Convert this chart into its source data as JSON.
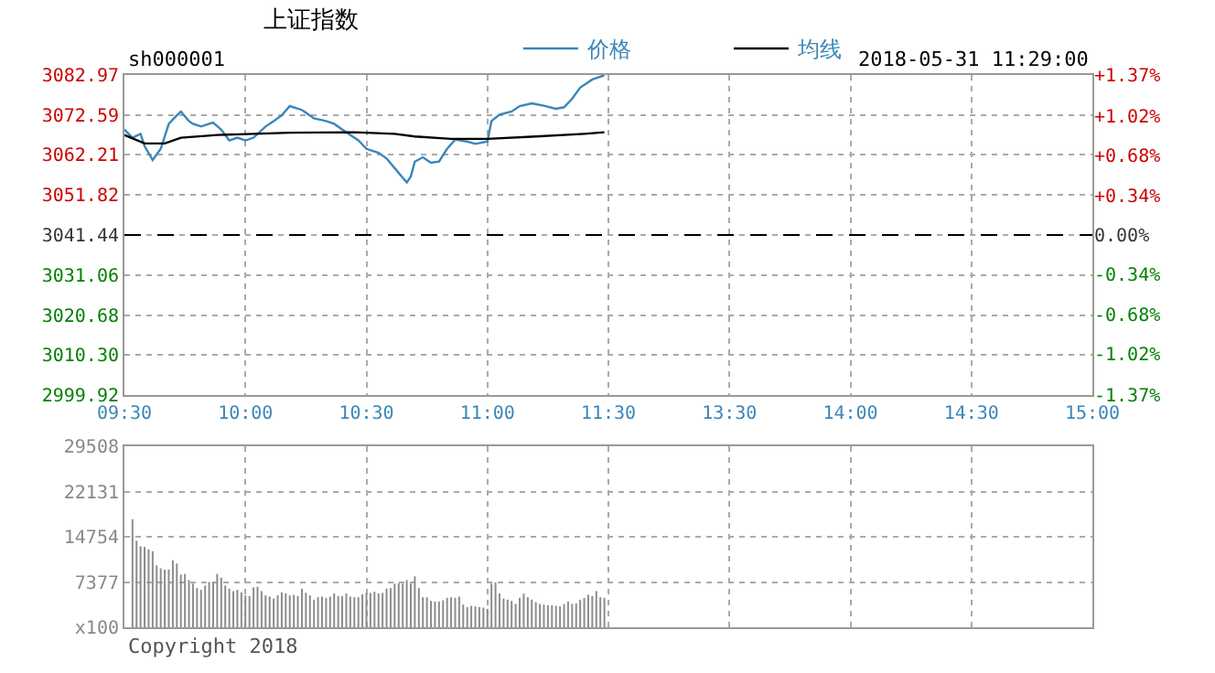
{
  "chart_data": [
    {
      "type": "line",
      "title": "上证指数",
      "subtitle": "sh000001",
      "annotations": [
        "2018-05-31 11:29:00"
      ],
      "categories": [
        "09:30",
        null,
        null,
        null,
        null,
        null,
        null,
        null,
        null,
        null,
        null,
        null,
        null,
        null,
        null,
        null,
        null,
        null,
        null,
        null,
        null,
        null,
        null,
        null,
        null,
        null,
        null,
        null,
        null,
        null,
        "10:00",
        null,
        null,
        null,
        null,
        null,
        null,
        null,
        null,
        null,
        null,
        null,
        null,
        null,
        null,
        null,
        null,
        null,
        null,
        null,
        null,
        null,
        null,
        null,
        null,
        null,
        null,
        null,
        null,
        null,
        "10:30",
        null,
        null,
        null,
        null,
        null,
        null,
        null,
        null,
        null,
        null,
        null,
        null,
        null,
        null,
        null,
        null,
        null,
        null,
        null,
        null,
        null,
        null,
        null,
        null,
        null,
        null,
        null,
        null,
        null,
        "11:00",
        null,
        null,
        null,
        null,
        null,
        null,
        null,
        null,
        null,
        null,
        null,
        null,
        null,
        null,
        null,
        null,
        null,
        null,
        null,
        null,
        null,
        null,
        null,
        null,
        null,
        null,
        null,
        null,
        null,
        "11:30",
        null,
        null,
        null,
        null,
        null,
        null,
        null,
        null,
        null,
        null,
        null,
        null,
        null,
        null,
        null,
        null,
        null,
        null,
        null,
        null,
        null,
        null,
        null,
        null,
        null,
        null,
        null,
        null,
        null,
        "13:30",
        null,
        null,
        null,
        null,
        null,
        null,
        null,
        null,
        null,
        null,
        null,
        null,
        null,
        null,
        null,
        null,
        null,
        null,
        null,
        null,
        null,
        null,
        null,
        null,
        null,
        null,
        null,
        null,
        null,
        "14:00",
        null,
        null,
        null,
        null,
        null,
        null,
        null,
        null,
        null,
        null,
        null,
        null,
        null,
        null,
        null,
        null,
        null,
        null,
        null,
        null,
        null,
        null,
        null,
        null,
        null,
        null,
        null,
        null,
        null,
        "14:30",
        null,
        null,
        null,
        null,
        null,
        null,
        null,
        null,
        null,
        null,
        null,
        null,
        null,
        null,
        null,
        null,
        null,
        null,
        null,
        null,
        null,
        null,
        null,
        null,
        null,
        null,
        null,
        null,
        null,
        "15:00"
      ],
      "series": [
        {
          "name": "价格",
          "color": "#3a86b8",
          "values": [
            3068.8,
            null,
            3066.7,
            null,
            3067.7,
            3064.5,
            null,
            3060.9,
            null,
            3063.8,
            null,
            3070.3,
            null,
            3072.5,
            3073.5,
            null,
            3071.0,
            3070.3,
            null,
            3069.6,
            null,
            3070.3,
            3070.6,
            null,
            3068.8,
            null,
            3066.0,
            null,
            3066.7,
            null,
            3066.0,
            null,
            3066.7,
            null,
            null,
            3069.6,
            null,
            3071.0,
            null,
            3072.5,
            null,
            3074.9,
            null,
            null,
            3073.9,
            3073.2,
            null,
            3071.7,
            null,
            null,
            3071.0,
            null,
            3070.3,
            null,
            null,
            3068.1,
            null,
            null,
            3066.0,
            null,
            3063.8,
            null,
            null,
            3062.8,
            null,
            3061.3,
            null,
            3058.8,
            null,
            null,
            3055.1,
            3056.6,
            3060.5,
            null,
            3061.6,
            null,
            3060.2,
            null,
            3060.5,
            null,
            3063.8,
            null,
            3066.2,
            null,
            null,
            3065.7,
            null,
            3065.1,
            null,
            null,
            3065.7,
            3071.0,
            null,
            3072.7,
            null,
            null,
            3073.5,
            null,
            3074.9,
            null,
            null,
            3075.6,
            null,
            null,
            3075.0,
            null,
            null,
            3074.2,
            null,
            3074.6,
            null,
            3076.8,
            null,
            3079.7,
            null,
            null,
            3081.8,
            null,
            null,
            3082.9,
            null,
            null,
            null,
            null,
            null,
            null,
            null,
            null,
            null,
            null,
            null,
            null,
            null,
            null,
            null,
            null,
            null,
            null,
            null,
            null,
            null,
            null,
            null,
            null,
            null,
            null,
            null,
            null,
            null,
            null,
            null,
            null,
            null,
            null,
            null,
            null,
            null,
            null,
            null,
            null,
            null,
            null,
            null,
            null,
            null,
            null,
            null,
            null,
            null,
            null,
            null,
            null,
            null,
            null,
            null,
            null,
            null,
            null,
            null,
            null,
            null,
            null,
            null,
            null,
            null,
            null,
            null,
            null,
            null,
            null,
            null,
            null,
            null,
            null,
            null,
            null,
            null,
            null,
            null,
            null,
            null,
            null,
            null,
            null,
            null,
            null,
            null,
            null,
            null,
            null,
            null,
            null,
            null,
            null,
            null,
            null,
            null,
            null,
            null,
            null,
            null,
            null,
            null,
            null,
            null,
            null,
            null,
            null,
            null,
            null,
            null,
            null,
            null,
            null,
            null,
            null,
            null,
            null,
            null,
            null,
            null
          ]
        },
        {
          "name": "均线",
          "color": "#000000",
          "values": [
            3067.4,
            null,
            null,
            null,
            null,
            3065.2,
            null,
            null,
            null,
            null,
            3065.2,
            null,
            null,
            null,
            3066.7,
            null,
            null,
            null,
            null,
            null,
            null,
            null,
            null,
            3067.4,
            null,
            null,
            null,
            null,
            null,
            null,
            null,
            null,
            null,
            null,
            null,
            null,
            null,
            null,
            null,
            null,
            null,
            3068.0,
            null,
            null,
            null,
            null,
            null,
            null,
            null,
            null,
            null,
            null,
            null,
            null,
            null,
            null,
            null,
            3068.1,
            null,
            null,
            null,
            null,
            null,
            null,
            null,
            null,
            null,
            3067.7,
            null,
            null,
            null,
            null,
            3067.0,
            null,
            null,
            null,
            null,
            null,
            null,
            null,
            null,
            3066.4,
            null,
            null,
            null,
            null,
            null,
            null,
            null,
            null,
            3066.4,
            null,
            null,
            null,
            null,
            null,
            null,
            null,
            null,
            null,
            null,
            null,
            3067.0,
            null,
            null,
            null,
            null,
            null,
            null,
            null,
            null,
            null,
            null,
            null,
            3067.7,
            null,
            null,
            null,
            null,
            3068.1,
            null,
            null,
            null,
            null,
            null,
            null,
            null,
            null,
            null,
            null,
            null,
            null,
            null,
            null,
            null,
            null,
            null,
            null,
            null,
            null,
            null,
            null,
            null,
            null,
            null,
            null,
            null,
            null,
            null,
            null,
            null,
            null,
            null,
            null,
            null,
            null,
            null,
            null,
            null,
            null,
            null,
            null,
            null,
            null,
            null,
            null,
            null,
            null,
            null,
            null,
            null,
            null,
            null,
            null,
            null,
            null,
            null,
            null,
            null,
            null,
            null,
            null,
            null,
            null,
            null,
            null,
            null,
            null,
            null,
            null,
            null,
            null,
            null,
            null,
            null,
            null,
            null,
            null,
            null,
            null,
            null,
            null,
            null,
            null,
            null,
            null,
            null,
            null,
            null,
            null,
            null,
            null,
            null,
            null,
            null,
            null,
            null,
            null,
            null,
            null,
            null,
            null,
            null,
            null,
            null,
            null,
            null,
            null,
            null,
            null,
            null,
            null,
            null,
            null,
            null,
            null,
            null,
            null,
            null,
            null,
            null
          ]
        }
      ],
      "ylim": [
        2999.92,
        3082.97
      ],
      "yticks": [
        2999.92,
        {
          "value": 3010.3,
          "label": "3010.30"
        },
        3020.68,
        3031.06,
        3041.44,
        3051.82,
        3062.21,
        3072.59,
        3082.97
      ],
      "y2lim": [
        -1.37,
        1.37
      ],
      "y2ticks": [
        {
          "value": -1.37,
          "label": "-1.37%"
        },
        {
          "value": -1.02,
          "label": "-1.02%"
        },
        {
          "value": -0.68,
          "label": "-0.68%"
        },
        {
          "value": -0.34,
          "label": "-0.34%"
        },
        {
          "value": 0,
          "label": "0.00%"
        },
        {
          "value": 0.34,
          "label": "+0.34%"
        },
        {
          "value": 0.68,
          "label": "+0.68%"
        },
        {
          "value": 1.02,
          "label": "+1.02%"
        },
        {
          "value": 1.37,
          "label": "+1.37%"
        }
      ],
      "ref_lines": [
        {
          "axis": "y",
          "value": 3041.44,
          "color": "#000000",
          "line_style": "dashed"
        }
      ],
      "grid": true,
      "legend": "top"
    },
    {
      "type": "bar",
      "color": "#8c8c8c",
      "annotations": [
        "Copyright 2018"
      ],
      "categories": [
        null,
        null,
        null,
        null,
        null,
        null,
        null,
        null,
        null,
        null,
        null,
        null,
        null,
        null,
        null,
        null,
        null,
        null,
        null,
        null,
        null,
        null,
        null,
        null,
        null,
        null,
        null,
        null,
        null,
        null,
        null,
        null,
        null,
        null,
        null,
        null,
        null,
        null,
        null,
        null,
        null,
        null,
        null,
        null,
        null,
        null,
        null,
        null,
        null,
        null,
        null,
        null,
        null,
        null,
        null,
        null,
        null,
        null,
        null,
        null,
        null,
        null,
        null,
        null,
        null,
        null,
        null,
        null,
        null,
        null,
        null,
        null,
        null,
        null,
        null,
        null,
        null,
        null,
        null,
        null,
        null,
        null,
        null,
        null,
        null,
        null,
        null,
        null,
        null,
        null,
        null,
        null,
        null,
        null,
        null,
        null,
        null,
        null,
        null,
        null,
        null,
        null,
        null,
        null,
        null,
        null,
        null,
        null,
        null,
        null,
        null,
        null,
        null,
        null,
        null,
        null,
        null,
        null,
        null,
        null,
        null,
        null,
        null,
        null,
        null,
        null,
        null,
        null,
        null,
        null,
        null,
        null,
        null,
        null,
        null,
        null,
        null,
        null,
        null,
        null,
        null,
        null,
        null,
        null,
        null,
        null,
        null,
        null,
        null,
        null,
        null,
        null,
        null,
        null,
        null,
        null,
        null,
        null,
        null,
        null,
        null,
        null,
        null,
        null,
        null,
        null,
        null,
        null,
        null,
        null,
        null,
        null,
        null,
        null,
        null,
        null,
        null,
        null,
        null,
        null,
        null,
        null,
        null,
        null,
        null,
        null,
        null,
        null,
        null,
        null,
        null,
        null,
        null,
        null,
        null,
        null,
        null,
        null,
        null,
        null,
        null,
        null,
        null,
        null,
        null,
        null,
        null,
        null,
        null,
        null,
        null,
        null,
        null,
        null,
        null,
        null,
        null,
        null,
        null,
        null,
        null,
        null,
        null,
        null,
        null,
        null,
        null,
        null,
        null,
        null,
        null,
        null,
        null,
        null,
        null,
        null,
        null,
        null,
        null,
        null,
        null
      ],
      "values": [
        null,
        null,
        17600,
        14100,
        13200,
        13100,
        12700,
        12400,
        10100,
        9600,
        9400,
        9400,
        10900,
        10400,
        8600,
        8700,
        7700,
        7100,
        6400,
        6100,
        6800,
        7400,
        7400,
        8700,
        8100,
        6800,
        6300,
        5900,
        6100,
        5700,
        5200,
        5100,
        6500,
        6600,
        5900,
        5200,
        5000,
        4700,
        5200,
        5700,
        5500,
        5200,
        5300,
        5100,
        6300,
        5600,
        5200,
        4500,
        4900,
        5000,
        4800,
        5000,
        5500,
        5100,
        5100,
        5500,
        5000,
        4900,
        4900,
        5400,
        5600,
        5600,
        5800,
        5500,
        5600,
        6300,
        6400,
        7100,
        7200,
        7100,
        7700,
        7100,
        8300,
        6400,
        4900,
        4900,
        4300,
        4200,
        4200,
        4400,
        4800,
        4900,
        4800,
        5000,
        3700,
        3300,
        3500,
        3400,
        3300,
        3200,
        3000,
        7100,
        7300,
        5500,
        4700,
        4500,
        4300,
        3800,
        4800,
        5500,
        4900,
        4500,
        4100,
        3800,
        3700,
        3600,
        3600,
        3500,
        3400,
        3800,
        4200,
        3800,
        3900,
        4500,
        4800,
        5300,
        5100,
        5900,
        4900,
        4800,
        null,
        null,
        null,
        null,
        null,
        null,
        null,
        null,
        null,
        null,
        null,
        null,
        null,
        null,
        null,
        null,
        null,
        null,
        null,
        null,
        null,
        null,
        null,
        null,
        null,
        null,
        null,
        null,
        null,
        null,
        null,
        null,
        null,
        null,
        null,
        null,
        null,
        null,
        null,
        null,
        null,
        null,
        null,
        null,
        null,
        null,
        null,
        null,
        null,
        null,
        null,
        null,
        null,
        null,
        null,
        null,
        null,
        null,
        null,
        null,
        null,
        null,
        null,
        null,
        null,
        null,
        null,
        null,
        null,
        null,
        null,
        null,
        null,
        null,
        null,
        null,
        null,
        null,
        null,
        null,
        null,
        null,
        null,
        null,
        null,
        null,
        null,
        null,
        null,
        null,
        null,
        null,
        null,
        null,
        null,
        null,
        null,
        null,
        null,
        null,
        null,
        null,
        null,
        null,
        null,
        null,
        null,
        null,
        null,
        null,
        null,
        null,
        null,
        null,
        null,
        null,
        null,
        null,
        null,
        null,
        null
      ],
      "ylim": [
        0,
        29508
      ],
      "yticks": [
        {
          "value": 0,
          "label": "x100"
        },
        7377,
        14754,
        22131,
        29508
      ],
      "grid": true,
      "tick_labels": "y"
    }
  ]
}
